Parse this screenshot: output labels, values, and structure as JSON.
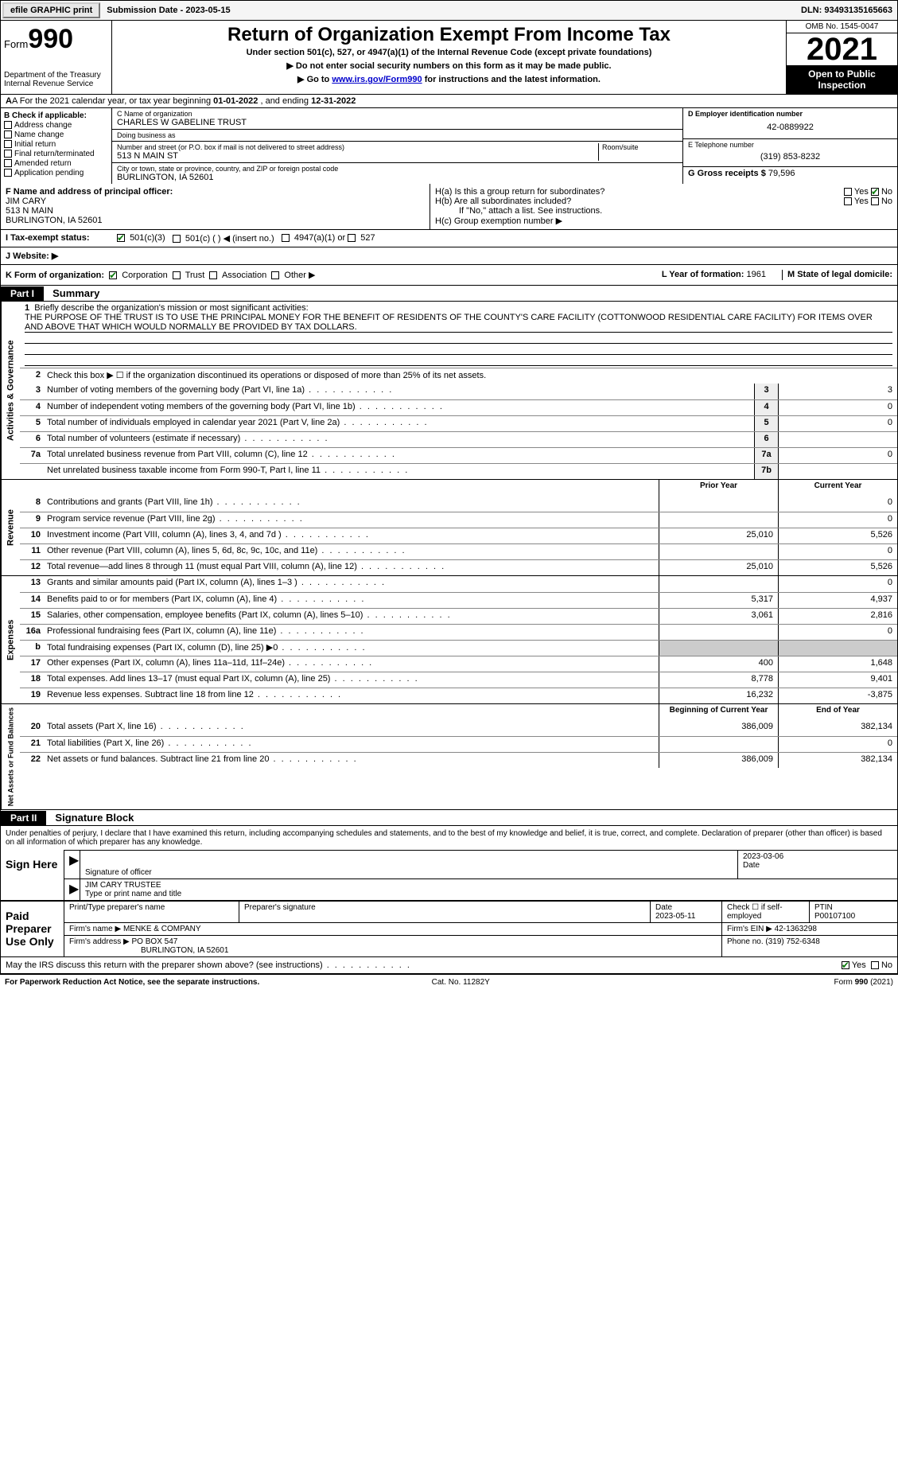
{
  "topbar": {
    "efile": "efile GRAPHIC print",
    "submission_label": "Submission Date - ",
    "submission_date": "2023-05-15",
    "dln_label": "DLN: ",
    "dln": "93493135165663"
  },
  "header": {
    "form_word": "Form",
    "form_num": "990",
    "dept": "Department of the Treasury",
    "irs": "Internal Revenue Service",
    "title": "Return of Organization Exempt From Income Tax",
    "sub1": "Under section 501(c), 527, or 4947(a)(1) of the Internal Revenue Code (except private foundations)",
    "sub2a": "▶ Do not enter social security numbers on this form as it may be made public.",
    "sub2b_pre": "▶ Go to ",
    "sub2b_link": "www.irs.gov/Form990",
    "sub2b_post": " for instructions and the latest information.",
    "omb": "OMB No. 1545-0047",
    "year": "2021",
    "open": "Open to Public Inspection"
  },
  "row_a": {
    "text_pre": "A For the 2021 calendar year, or tax year beginning ",
    "begin": "01-01-2022",
    "mid": "   , and ending ",
    "end": "12-31-2022"
  },
  "col_b": {
    "label": "B Check if applicable:",
    "opts": [
      "Address change",
      "Name change",
      "Initial return",
      "Final return/terminated",
      "Amended return",
      "Application pending"
    ]
  },
  "org": {
    "c_label": "C Name of organization",
    "name": "CHARLES W GABELINE TRUST",
    "dba_label": "Doing business as",
    "dba": "",
    "addr_label": "Number and street (or P.O. box if mail is not delivered to street address)",
    "room_label": "Room/suite",
    "addr": "513 N MAIN ST",
    "city_label": "City or town, state or province, country, and ZIP or foreign postal code",
    "city": "BURLINGTON, IA  52601"
  },
  "right": {
    "d_label": "D Employer identification number",
    "ein": "42-0889922",
    "e_label": "E Telephone number",
    "phone": "(319) 853-8232",
    "g_label": "G Gross receipts $ ",
    "gross": "79,596"
  },
  "officer": {
    "f_label": "F  Name and address of principal officer:",
    "name": "JIM CARY",
    "addr1": "513 N MAIN",
    "addr2": "BURLINGTON, IA  52601"
  },
  "h": {
    "ha": "H(a)  Is this a group return for subordinates?",
    "hb": "H(b)  Are all subordinates included?",
    "hb_note": "If \"No,\" attach a list. See instructions.",
    "hc": "H(c)  Group exemption number ▶",
    "yes": "Yes",
    "no": "No"
  },
  "row_i": {
    "label": "I  Tax-exempt status:",
    "o1": "501(c)(3)",
    "o2": "501(c) (  ) ◀ (insert no.)",
    "o3": "4947(a)(1) or",
    "o4": "527"
  },
  "row_j": {
    "label": "J  Website: ▶"
  },
  "row_k": {
    "label": "K Form of organization:",
    "opts": [
      "Corporation",
      "Trust",
      "Association",
      "Other ▶"
    ],
    "l_label": "L Year of formation: ",
    "l_val": "1961",
    "m_label": "M State of legal domicile:",
    "m_val": ""
  },
  "part1": {
    "hdr": "Part I",
    "title": "Summary",
    "line1_label": "Briefly describe the organization's mission or most significant activities:",
    "mission": "THE PURPOSE OF THE TRUST IS TO USE THE PRINCIPAL MONEY FOR THE BENEFIT OF RESIDENTS OF THE COUNTY'S CARE FACILITY (COTTONWOOD RESIDENTIAL CARE FACILITY) FOR ITEMS OVER AND ABOVE THAT WHICH WOULD NORMALLY BE PROVIDED BY TAX DOLLARS.",
    "line2": "Check this box ▶ ☐ if the organization discontinued its operations or disposed of more than 25% of its net assets.",
    "gov_lines": [
      {
        "n": "3",
        "t": "Number of voting members of the governing body (Part VI, line 1a)",
        "box": "3",
        "v": "3"
      },
      {
        "n": "4",
        "t": "Number of independent voting members of the governing body (Part VI, line 1b)",
        "box": "4",
        "v": "0"
      },
      {
        "n": "5",
        "t": "Total number of individuals employed in calendar year 2021 (Part V, line 2a)",
        "box": "5",
        "v": "0"
      },
      {
        "n": "6",
        "t": "Total number of volunteers (estimate if necessary)",
        "box": "6",
        "v": ""
      },
      {
        "n": "7a",
        "t": "Total unrelated business revenue from Part VIII, column (C), line 12",
        "box": "7a",
        "v": "0"
      },
      {
        "n": "",
        "t": "Net unrelated business taxable income from Form 990-T, Part I, line 11",
        "box": "7b",
        "v": ""
      }
    ],
    "prior_hdr": "Prior Year",
    "curr_hdr": "Current Year",
    "rev_lines": [
      {
        "n": "8",
        "t": "Contributions and grants (Part VIII, line 1h)",
        "p": "",
        "c": "0"
      },
      {
        "n": "9",
        "t": "Program service revenue (Part VIII, line 2g)",
        "p": "",
        "c": "0"
      },
      {
        "n": "10",
        "t": "Investment income (Part VIII, column (A), lines 3, 4, and 7d )",
        "p": "25,010",
        "c": "5,526"
      },
      {
        "n": "11",
        "t": "Other revenue (Part VIII, column (A), lines 5, 6d, 8c, 9c, 10c, and 11e)",
        "p": "",
        "c": "0"
      },
      {
        "n": "12",
        "t": "Total revenue—add lines 8 through 11 (must equal Part VIII, column (A), line 12)",
        "p": "25,010",
        "c": "5,526"
      }
    ],
    "exp_lines": [
      {
        "n": "13",
        "t": "Grants and similar amounts paid (Part IX, column (A), lines 1–3 )",
        "p": "",
        "c": "0"
      },
      {
        "n": "14",
        "t": "Benefits paid to or for members (Part IX, column (A), line 4)",
        "p": "5,317",
        "c": "4,937"
      },
      {
        "n": "15",
        "t": "Salaries, other compensation, employee benefits (Part IX, column (A), lines 5–10)",
        "p": "3,061",
        "c": "2,816"
      },
      {
        "n": "16a",
        "t": "Professional fundraising fees (Part IX, column (A), line 11e)",
        "p": "",
        "c": "0"
      },
      {
        "n": "b",
        "t": "Total fundraising expenses (Part IX, column (D), line 25) ▶0",
        "p": "grey",
        "c": "grey"
      },
      {
        "n": "17",
        "t": "Other expenses (Part IX, column (A), lines 11a–11d, 11f–24e)",
        "p": "400",
        "c": "1,648"
      },
      {
        "n": "18",
        "t": "Total expenses. Add lines 13–17 (must equal Part IX, column (A), line 25)",
        "p": "8,778",
        "c": "9,401"
      },
      {
        "n": "19",
        "t": "Revenue less expenses. Subtract line 18 from line 12",
        "p": "16,232",
        "c": "-3,875"
      }
    ],
    "bal_hdr_p": "Beginning of Current Year",
    "bal_hdr_c": "End of Year",
    "bal_lines": [
      {
        "n": "20",
        "t": "Total assets (Part X, line 16)",
        "p": "386,009",
        "c": "382,134"
      },
      {
        "n": "21",
        "t": "Total liabilities (Part X, line 26)",
        "p": "",
        "c": "0"
      },
      {
        "n": "22",
        "t": "Net assets or fund balances. Subtract line 21 from line 20",
        "p": "386,009",
        "c": "382,134"
      }
    ],
    "vtab_gov": "Activities & Governance",
    "vtab_rev": "Revenue",
    "vtab_exp": "Expenses",
    "vtab_bal": "Net Assets or Fund Balances"
  },
  "part2": {
    "hdr": "Part II",
    "title": "Signature Block",
    "intro": "Under penalties of perjury, I declare that I have examined this return, including accompanying schedules and statements, and to the best of my knowledge and belief, it is true, correct, and complete. Declaration of preparer (other than officer) is based on all information of which preparer has any knowledge.",
    "sign_here": "Sign Here",
    "sig_officer": "Signature of officer",
    "sig_date": "2023-03-06",
    "date_lbl": "Date",
    "officer_name": "JIM CARY TRUSTEE",
    "type_name": "Type or print name and title",
    "paid": "Paid Preparer Use Only",
    "prep_name_lbl": "Print/Type preparer's name",
    "prep_sig_lbl": "Preparer's signature",
    "prep_date_lbl": "Date",
    "prep_date": "2023-05-11",
    "self_emp": "Check ☐ if self-employed",
    "ptin_lbl": "PTIN",
    "ptin": "P00107100",
    "firm_name_lbl": "Firm's name    ▶ ",
    "firm_name": "MENKE & COMPANY",
    "firm_ein_lbl": "Firm's EIN ▶ ",
    "firm_ein": "42-1363298",
    "firm_addr_lbl": "Firm's address ▶ ",
    "firm_addr1": "PO BOX 547",
    "firm_addr2": "BURLINGTON, IA  52601",
    "firm_phone_lbl": "Phone no. ",
    "firm_phone": "(319) 752-6348",
    "discuss": "May the IRS discuss this return with the preparer shown above? (see instructions)",
    "yes": "Yes",
    "no": "No"
  },
  "footer": {
    "left": "For Paperwork Reduction Act Notice, see the separate instructions.",
    "mid": "Cat. No. 11282Y",
    "right": "Form 990 (2021)"
  },
  "colors": {
    "link": "#0000cc",
    "check": "#0a7a0a"
  }
}
